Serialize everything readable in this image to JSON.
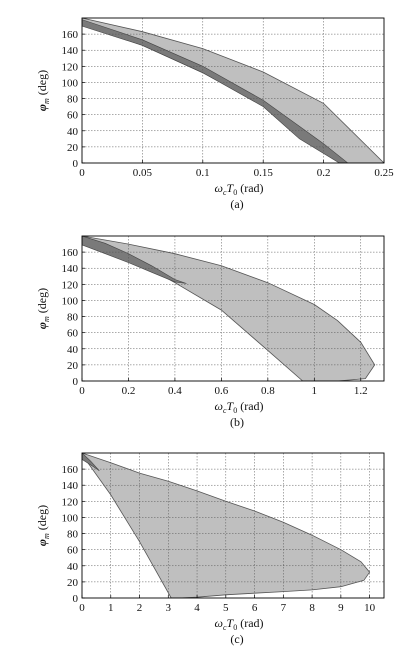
{
  "chart_data": [
    {
      "type": "area",
      "panel_label": "(a)",
      "xlabel": "ωcT0 (rad)",
      "ylabel": "φm (deg)",
      "xlim": [
        0,
        0.25
      ],
      "ylim": [
        0,
        180
      ],
      "xticks": [
        "0",
        "0.05",
        "0.1",
        "0.15",
        "0.2",
        "0.25"
      ],
      "yticks": [
        "0",
        "20",
        "40",
        "60",
        "80",
        "100",
        "120",
        "140",
        "160"
      ],
      "grid": true,
      "light_region": [
        [
          0,
          180
        ],
        [
          0.05,
          163
        ],
        [
          0.1,
          142
        ],
        [
          0.15,
          113
        ],
        [
          0.2,
          74
        ],
        [
          0.25,
          0
        ],
        [
          0.215,
          0
        ],
        [
          0.18,
          40
        ],
        [
          0.15,
          72
        ],
        [
          0.1,
          112
        ],
        [
          0.05,
          146
        ],
        [
          0,
          172
        ]
      ],
      "dark_region": [
        [
          0,
          178
        ],
        [
          0.05,
          153
        ],
        [
          0.1,
          120
        ],
        [
          0.15,
          78
        ],
        [
          0.2,
          24
        ],
        [
          0.22,
          0
        ],
        [
          0.213,
          0
        ],
        [
          0.18,
          30
        ],
        [
          0.15,
          70
        ],
        [
          0.1,
          112
        ],
        [
          0.05,
          146
        ],
        [
          0,
          170
        ]
      ],
      "colors": {
        "light": "#bfbfbf",
        "dark": "#7a7a7a"
      }
    },
    {
      "type": "area",
      "panel_label": "(b)",
      "xlabel": "ωcT0 (rad)",
      "ylabel": "φm (deg)",
      "xlim": [
        0,
        1.3
      ],
      "ylim": [
        0,
        180
      ],
      "xticks": [
        "0",
        "0.2",
        "0.4",
        "0.6",
        "0.8",
        "1",
        "1.2"
      ],
      "yticks": [
        "0",
        "20",
        "40",
        "60",
        "80",
        "100",
        "120",
        "140",
        "160"
      ],
      "grid": true,
      "light_region": [
        [
          0,
          180
        ],
        [
          0.2,
          170
        ],
        [
          0.4,
          158
        ],
        [
          0.6,
          143
        ],
        [
          0.8,
          122
        ],
        [
          1.0,
          95
        ],
        [
          1.1,
          75
        ],
        [
          1.2,
          48
        ],
        [
          1.26,
          20
        ],
        [
          1.22,
          3
        ],
        [
          1.1,
          0
        ],
        [
          0.95,
          0
        ],
        [
          0.8,
          38
        ],
        [
          0.6,
          88
        ],
        [
          0.4,
          122
        ],
        [
          0.2,
          154
        ],
        [
          0,
          172
        ]
      ],
      "dark_region": [
        [
          0,
          180
        ],
        [
          0.1,
          171
        ],
        [
          0.2,
          158
        ],
        [
          0.3,
          143
        ],
        [
          0.4,
          126
        ],
        [
          0.45,
          121
        ],
        [
          0.4,
          123
        ],
        [
          0.3,
          135
        ],
        [
          0.2,
          147
        ],
        [
          0.1,
          158
        ],
        [
          0,
          169
        ]
      ],
      "colors": {
        "light": "#bfbfbf",
        "dark": "#7a7a7a"
      }
    },
    {
      "type": "area",
      "panel_label": "(c)",
      "xlabel": "ωcT0 (rad)",
      "ylabel": "φm (deg)",
      "xlim": [
        0,
        10.5
      ],
      "ylim": [
        0,
        180
      ],
      "xticks": [
        "0",
        "1",
        "2",
        "3",
        "4",
        "5",
        "6",
        "7",
        "8",
        "9",
        "10"
      ],
      "yticks": [
        "0",
        "20",
        "40",
        "60",
        "80",
        "100",
        "120",
        "140",
        "160"
      ],
      "grid": true,
      "light_region": [
        [
          0,
          180
        ],
        [
          1,
          168
        ],
        [
          2,
          155
        ],
        [
          3,
          145
        ],
        [
          4,
          133
        ],
        [
          5,
          120
        ],
        [
          6,
          108
        ],
        [
          7,
          94
        ],
        [
          8,
          78
        ],
        [
          9,
          60
        ],
        [
          9.7,
          45
        ],
        [
          10,
          32
        ],
        [
          9.8,
          22
        ],
        [
          9,
          14
        ],
        [
          8,
          10
        ],
        [
          7,
          8
        ],
        [
          6,
          6
        ],
        [
          5,
          4
        ],
        [
          4,
          1
        ],
        [
          3.4,
          0
        ],
        [
          3.1,
          0
        ],
        [
          2,
          70
        ],
        [
          1,
          128
        ],
        [
          0,
          178
        ]
      ],
      "dark_region": [
        [
          0,
          180
        ],
        [
          0.3,
          170
        ],
        [
          0.6,
          158
        ],
        [
          0.4,
          163
        ],
        [
          0,
          172
        ]
      ],
      "colors": {
        "light": "#bfbfbf",
        "dark": "#7a7a7a"
      }
    }
  ]
}
